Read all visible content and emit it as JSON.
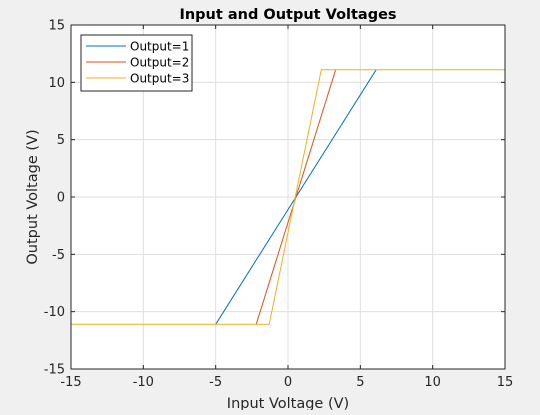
{
  "chart_data": {
    "type": "line",
    "title": "Input and Output Voltages",
    "xlabel": "Input Voltage (V)",
    "ylabel": "Output Voltage (V)",
    "xlim": [
      -15,
      15
    ],
    "ylim": [
      -15,
      15
    ],
    "xticks": [
      -15,
      -10,
      -5,
      0,
      5,
      10,
      15
    ],
    "yticks": [
      -15,
      -10,
      -5,
      0,
      5,
      10,
      15
    ],
    "grid": true,
    "legend_position": "top-left",
    "series": [
      {
        "name": "Output=1",
        "color": "#0072bd",
        "x": [
          -5.0,
          6.1
        ],
        "y": [
          -11.1,
          11.1
        ]
      },
      {
        "name": "Output=2",
        "color": "#d95319",
        "x": [
          -2.2,
          3.3
        ],
        "y": [
          -11.1,
          11.1
        ]
      },
      {
        "name": "Output=3",
        "color": "#edb120",
        "x": [
          -15.0,
          -1.3,
          2.3,
          15.0
        ],
        "y": [
          -11.1,
          -11.1,
          11.1,
          11.1
        ]
      }
    ]
  }
}
